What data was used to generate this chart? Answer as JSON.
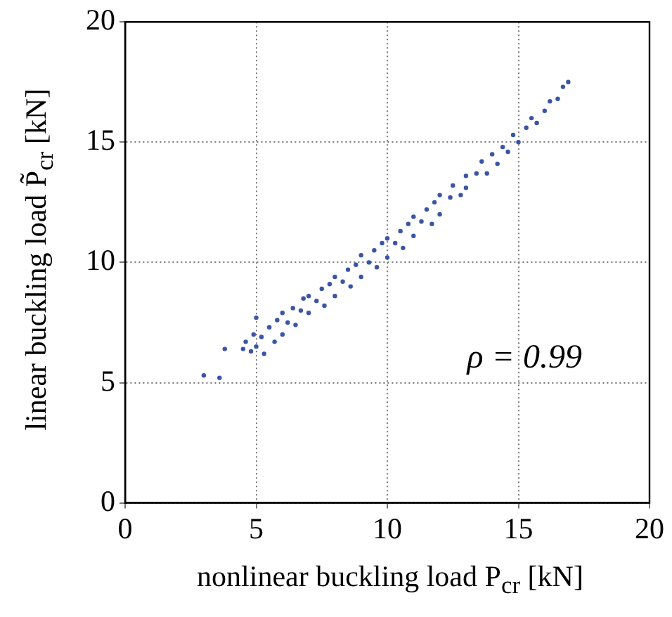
{
  "chart_data": {
    "type": "scatter",
    "xlabel": "nonlinear buckling load P$_{cr}$ [kN]",
    "ylabel": "linear buckling load P̃$_{cr}$ [kN]",
    "annotations": [
      "ρ = 0.99"
    ],
    "x": [
      3.0,
      3.6,
      3.8,
      4.5,
      4.6,
      4.8,
      4.9,
      5.0,
      5.0,
      5.2,
      5.3,
      5.5,
      5.7,
      5.8,
      6.0,
      6.0,
      6.2,
      6.4,
      6.5,
      6.7,
      6.8,
      7.0,
      7.0,
      7.3,
      7.5,
      7.6,
      7.8,
      8.0,
      8.0,
      8.3,
      8.5,
      8.6,
      8.8,
      9.0,
      9.0,
      9.3,
      9.5,
      9.6,
      9.8,
      10.0,
      10.0,
      10.3,
      10.5,
      10.6,
      10.8,
      11.0,
      11.0,
      11.3,
      11.5,
      11.7,
      11.8,
      12.0,
      12.0,
      12.4,
      12.5,
      12.8,
      13.0,
      13.0,
      13.4,
      13.6,
      13.8,
      14.0,
      14.2,
      14.4,
      14.6,
      14.8,
      15.0,
      15.3,
      15.5,
      15.7,
      16.0,
      16.2,
      16.5,
      16.7,
      16.9
    ],
    "series": [
      {
        "color": "#3a55a4",
        "values": [
          5.3,
          5.2,
          6.4,
          6.4,
          6.7,
          6.3,
          7.0,
          6.5,
          7.7,
          6.9,
          6.2,
          7.3,
          6.7,
          7.6,
          7.0,
          7.9,
          7.5,
          8.1,
          7.4,
          8.0,
          8.5,
          7.9,
          8.6,
          8.4,
          8.9,
          8.2,
          9.1,
          8.6,
          9.4,
          9.2,
          9.7,
          9.0,
          9.9,
          9.4,
          10.3,
          10.0,
          10.5,
          9.8,
          10.8,
          10.2,
          11.0,
          10.8,
          11.3,
          10.6,
          11.6,
          11.1,
          11.9,
          11.7,
          12.2,
          11.6,
          12.5,
          12.0,
          12.8,
          12.7,
          13.2,
          12.8,
          13.6,
          13.1,
          13.7,
          14.2,
          13.7,
          14.5,
          14.1,
          14.8,
          14.6,
          15.3,
          15.0,
          15.6,
          16.0,
          15.8,
          16.3,
          16.7,
          16.8,
          17.3,
          17.5
        ]
      }
    ],
    "xlim": [
      0,
      20
    ],
    "ylim": [
      0,
      20
    ],
    "xticks": [
      0,
      5,
      10,
      15,
      20
    ],
    "yticks": [
      0,
      5,
      10,
      15,
      20
    ],
    "grid": true,
    "marker": "circle"
  }
}
